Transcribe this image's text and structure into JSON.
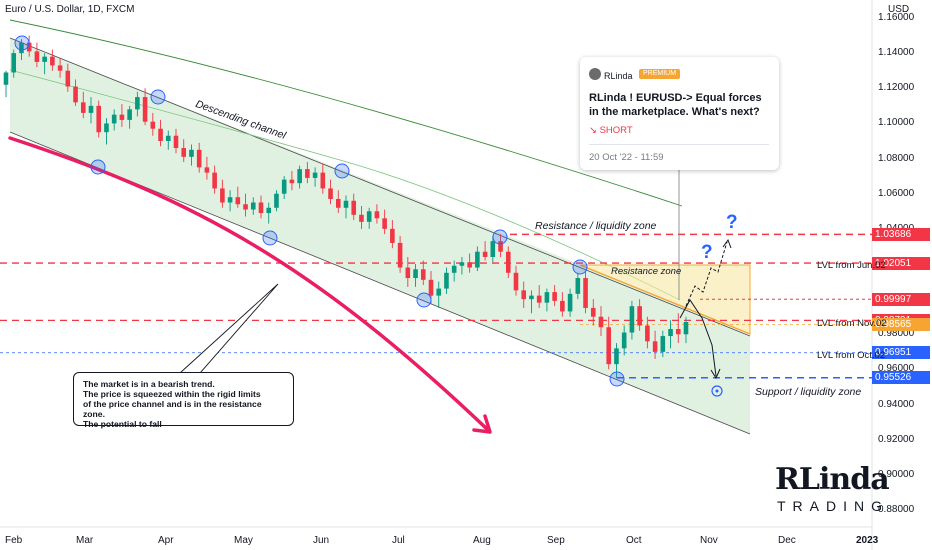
{
  "header": {
    "symbol": "Euro / U.S. Dollar, 1D, FXCM",
    "currency": "USD"
  },
  "chart_data": {
    "type": "candlestick",
    "title": "Euro / U.S. Dollar, 1D, FXCM",
    "y_unit": "USD",
    "ylim": [
      0.87,
      1.17
    ],
    "y_ticks": [
      "1.16000",
      "1.14000",
      "1.12000",
      "1.10000",
      "1.08000",
      "1.06000",
      "1.04000",
      "1.02000",
      "1.00000",
      "0.98000",
      "0.96000",
      "0.94000",
      "0.92000",
      "0.90000",
      "0.88000"
    ],
    "x_ticks": [
      "Feb",
      "Mar",
      "Apr",
      "May",
      "Jun",
      "Jul",
      "Aug",
      "Sep",
      "Oct",
      "Nov",
      "Dec",
      "2023"
    ],
    "grid": false,
    "colors": {
      "up": "#089981",
      "down": "#f23645",
      "channel": "#c8e6c9",
      "resistance_zone": "#f7e7a3",
      "curve": "#e91e63"
    },
    "price_tags": [
      {
        "value": "1.03686",
        "color": "#f23645"
      },
      {
        "value": "1.02051",
        "color": "#f23645"
      },
      {
        "value": "0.99997",
        "color": "#f23645"
      },
      {
        "value": "0.98791",
        "color": "#f23645"
      },
      {
        "value": "0.98565",
        "color": "#f7a532"
      },
      {
        "value": "0.96951",
        "color": "#2962ff"
      },
      {
        "value": "0.95526",
        "color": "#2962ff"
      }
    ],
    "candles": [
      [
        1.122,
        1.13,
        1.115,
        1.129
      ],
      [
        1.129,
        1.142,
        1.126,
        1.14
      ],
      [
        1.14,
        1.148,
        1.136,
        1.146
      ],
      [
        1.146,
        1.15,
        1.138,
        1.141
      ],
      [
        1.141,
        1.146,
        1.132,
        1.135
      ],
      [
        1.135,
        1.14,
        1.128,
        1.138
      ],
      [
        1.138,
        1.142,
        1.13,
        1.133
      ],
      [
        1.133,
        1.137,
        1.126,
        1.13
      ],
      [
        1.13,
        1.134,
        1.118,
        1.121
      ],
      [
        1.121,
        1.125,
        1.11,
        1.112
      ],
      [
        1.112,
        1.118,
        1.103,
        1.106
      ],
      [
        1.106,
        1.115,
        1.1,
        1.11
      ],
      [
        1.11,
        1.113,
        1.092,
        1.095
      ],
      [
        1.095,
        1.103,
        1.088,
        1.1
      ],
      [
        1.1,
        1.108,
        1.096,
        1.105
      ],
      [
        1.105,
        1.111,
        1.098,
        1.102
      ],
      [
        1.102,
        1.11,
        1.097,
        1.108
      ],
      [
        1.108,
        1.118,
        1.104,
        1.115
      ],
      [
        1.115,
        1.12,
        1.099,
        1.101
      ],
      [
        1.101,
        1.106,
        1.093,
        1.097
      ],
      [
        1.097,
        1.102,
        1.087,
        1.09
      ],
      [
        1.09,
        1.096,
        1.085,
        1.093
      ],
      [
        1.093,
        1.097,
        1.083,
        1.086
      ],
      [
        1.086,
        1.091,
        1.078,
        1.081
      ],
      [
        1.081,
        1.088,
        1.076,
        1.085
      ],
      [
        1.085,
        1.089,
        1.072,
        1.075
      ],
      [
        1.075,
        1.081,
        1.068,
        1.072
      ],
      [
        1.072,
        1.076,
        1.06,
        1.063
      ],
      [
        1.063,
        1.068,
        1.052,
        1.055
      ],
      [
        1.055,
        1.062,
        1.05,
        1.058
      ],
      [
        1.058,
        1.064,
        1.052,
        1.054
      ],
      [
        1.054,
        1.06,
        1.047,
        1.051
      ],
      [
        1.051,
        1.058,
        1.048,
        1.055
      ],
      [
        1.055,
        1.059,
        1.046,
        1.049
      ],
      [
        1.049,
        1.055,
        1.043,
        1.052
      ],
      [
        1.052,
        1.062,
        1.05,
        1.06
      ],
      [
        1.06,
        1.07,
        1.057,
        1.068
      ],
      [
        1.068,
        1.073,
        1.062,
        1.066
      ],
      [
        1.066,
        1.076,
        1.063,
        1.074
      ],
      [
        1.074,
        1.078,
        1.066,
        1.069
      ],
      [
        1.069,
        1.075,
        1.064,
        1.072
      ],
      [
        1.072,
        1.077,
        1.06,
        1.063
      ],
      [
        1.063,
        1.068,
        1.054,
        1.057
      ],
      [
        1.057,
        1.062,
        1.049,
        1.052
      ],
      [
        1.052,
        1.059,
        1.046,
        1.056
      ],
      [
        1.056,
        1.06,
        1.045,
        1.048
      ],
      [
        1.048,
        1.053,
        1.04,
        1.044
      ],
      [
        1.044,
        1.052,
        1.04,
        1.05
      ],
      [
        1.05,
        1.054,
        1.043,
        1.046
      ],
      [
        1.046,
        1.051,
        1.037,
        1.04
      ],
      [
        1.04,
        1.045,
        1.029,
        1.032
      ],
      [
        1.032,
        1.036,
        1.015,
        1.018
      ],
      [
        1.018,
        1.024,
        1.007,
        1.012
      ],
      [
        1.012,
        1.02,
        1.007,
        1.017
      ],
      [
        1.017,
        1.022,
        1.008,
        1.011
      ],
      [
        1.011,
        1.016,
        0.997,
        1.002
      ],
      [
        1.002,
        1.01,
        0.995,
        1.006
      ],
      [
        1.006,
        1.018,
        1.003,
        1.015
      ],
      [
        1.015,
        1.022,
        1.01,
        1.019
      ],
      [
        1.019,
        1.024,
        1.014,
        1.021
      ],
      [
        1.021,
        1.026,
        1.015,
        1.018
      ],
      [
        1.018,
        1.03,
        1.016,
        1.027
      ],
      [
        1.027,
        1.033,
        1.022,
        1.024
      ],
      [
        1.024,
        1.036,
        1.021,
        1.033
      ],
      [
        1.033,
        1.037,
        1.024,
        1.027
      ],
      [
        1.027,
        1.03,
        1.012,
        1.015
      ],
      [
        1.015,
        1.019,
        1.002,
        1.005
      ],
      [
        1.005,
        1.01,
        0.995,
        1.0
      ],
      [
        1.0,
        1.005,
        0.992,
        1.002
      ],
      [
        1.002,
        1.008,
        0.995,
        0.998
      ],
      [
        0.998,
        1.006,
        0.993,
        1.004
      ],
      [
        1.004,
        1.008,
        0.996,
        0.999
      ],
      [
        0.999,
        1.004,
        0.99,
        0.993
      ],
      [
        0.993,
        1.006,
        0.99,
        1.003
      ],
      [
        1.003,
        1.015,
        1.0,
        1.012
      ],
      [
        1.012,
        1.016,
        0.992,
        0.995
      ],
      [
        0.995,
        1.0,
        0.985,
        0.99
      ],
      [
        0.99,
        0.996,
        0.979,
        0.984
      ],
      [
        0.984,
        0.99,
        0.96,
        0.963
      ],
      [
        0.963,
        0.975,
        0.955,
        0.972
      ],
      [
        0.972,
        0.985,
        0.968,
        0.981
      ],
      [
        0.981,
        0.999,
        0.977,
        0.996
      ],
      [
        0.996,
        1.0,
        0.982,
        0.985
      ],
      [
        0.985,
        0.99,
        0.972,
        0.976
      ],
      [
        0.976,
        0.982,
        0.966,
        0.97
      ],
      [
        0.97,
        0.982,
        0.967,
        0.979
      ],
      [
        0.979,
        0.988,
        0.972,
        0.983
      ],
      [
        0.983,
        0.992,
        0.975,
        0.98
      ],
      [
        0.98,
        0.99,
        0.975,
        0.987
      ]
    ],
    "annotations": {
      "descending_channel": "Descending channel",
      "resistance_liquidity_zone": "Resistance / liquidity zone",
      "resistance_zone": "Resistance zone",
      "support_liquidity_zone": "Support / liquidity zone",
      "question_mark": "?",
      "levels": [
        "LVL from Jun.02",
        "LVL from Nov.02",
        "LVL from Oct.02"
      ],
      "note_lines": [
        "The market is in a bearish trend.",
        "The price is squeezed within the rigid limits",
        "of the price channel and is in the resistance zone.",
        "The potential to fall"
      ]
    }
  },
  "idea_card": {
    "author": "RLinda",
    "badge": "PREMIUM",
    "title": "RLinda ! EURUSD-> Equal forces in the marketplace. What's next?",
    "direction": "↘ SHORT",
    "date": "20 Oct '22 - 11:59"
  },
  "logo": {
    "big": "RLinda",
    "small": "TRADING"
  }
}
